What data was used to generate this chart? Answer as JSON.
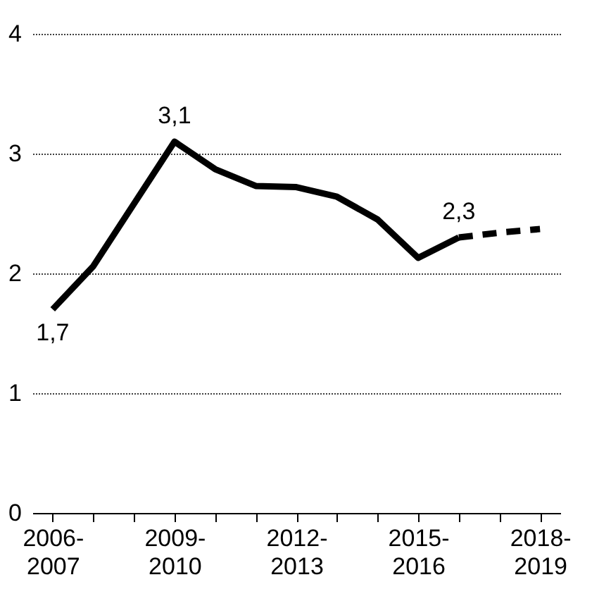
{
  "chart_data": {
    "type": "line",
    "categories": [
      "2006-2007",
      null,
      null,
      "2009-2010",
      null,
      null,
      "2012-2013",
      null,
      null,
      "2015-2016",
      null,
      null,
      "2018-2019"
    ],
    "series": [
      {
        "color": "#000000",
        "line_style": "solid",
        "values": [
          1.7,
          2.06,
          2.58,
          3.1,
          2.87,
          2.73,
          2.72,
          2.64,
          2.45,
          2.13,
          2.3,
          null,
          null
        ],
        "value_labels": [
          "1,7",
          null,
          null,
          "3,1",
          null,
          null,
          null,
          null,
          null,
          null,
          "2,3",
          null,
          null
        ]
      },
      {
        "color": "#000000",
        "line_style": "dashed",
        "values": [
          null,
          null,
          null,
          null,
          null,
          null,
          null,
          null,
          null,
          null,
          2.3,
          2.34,
          2.37
        ]
      }
    ],
    "ylim": [
      0,
      4
    ],
    "yticks": [
      0,
      1,
      2,
      3,
      4
    ],
    "grid": "y",
    "marker": "none"
  }
}
